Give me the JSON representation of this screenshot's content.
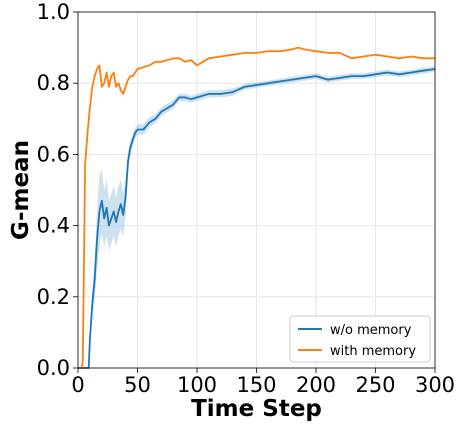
{
  "chart_data": {
    "type": "line",
    "xlabel": "Time Step",
    "ylabel": "G-mean",
    "xlim": [
      0,
      300
    ],
    "ylim": [
      0.0,
      1.0
    ],
    "xticks": [
      0,
      50,
      100,
      150,
      200,
      250,
      300
    ],
    "yticks": [
      "0.0",
      "0.2",
      "0.4",
      "0.6",
      "0.8",
      "1.0"
    ],
    "grid": true,
    "legend": {
      "placement": "bottom-right"
    },
    "series": [
      {
        "name": "w/o memory",
        "color": "#1f77b4",
        "band_color": "#a6c8e4",
        "x": [
          0,
          5,
          9,
          10,
          12,
          14,
          16,
          18,
          20,
          22,
          24,
          26,
          28,
          30,
          32,
          34,
          36,
          38,
          40,
          42,
          44,
          46,
          48,
          50,
          55,
          60,
          65,
          70,
          75,
          80,
          85,
          90,
          95,
          100,
          110,
          120,
          130,
          140,
          150,
          160,
          170,
          180,
          190,
          200,
          210,
          220,
          230,
          240,
          250,
          260,
          270,
          280,
          290,
          300
        ],
        "values": [
          0.0,
          0.0,
          0.0,
          0.08,
          0.18,
          0.25,
          0.36,
          0.44,
          0.47,
          0.42,
          0.45,
          0.4,
          0.42,
          0.44,
          0.41,
          0.44,
          0.46,
          0.43,
          0.48,
          0.58,
          0.62,
          0.64,
          0.66,
          0.67,
          0.67,
          0.69,
          0.7,
          0.72,
          0.73,
          0.74,
          0.76,
          0.76,
          0.755,
          0.76,
          0.77,
          0.77,
          0.775,
          0.79,
          0.795,
          0.8,
          0.805,
          0.81,
          0.815,
          0.82,
          0.81,
          0.815,
          0.82,
          0.82,
          0.825,
          0.83,
          0.825,
          0.83,
          0.835,
          0.84
        ],
        "band": [
          0,
          0,
          0,
          0.02,
          0.04,
          0.06,
          0.08,
          0.1,
          0.09,
          0.08,
          0.08,
          0.07,
          0.07,
          0.07,
          0.07,
          0.07,
          0.07,
          0.06,
          0.05,
          0.03,
          0.02,
          0.02,
          0.015,
          0.015,
          0.015,
          0.015,
          0.012,
          0.012,
          0.012,
          0.012,
          0.01,
          0.01,
          0.01,
          0.01,
          0.01,
          0.01,
          0.01,
          0.008,
          0.008,
          0.008,
          0.008,
          0.008,
          0.008,
          0.008,
          0.008,
          0.008,
          0.008,
          0.008,
          0.008,
          0.008,
          0.008,
          0.008,
          0.008,
          0.008
        ]
      },
      {
        "name": "with memory",
        "color": "#ff7f0e",
        "x": [
          0,
          3,
          4,
          6,
          8,
          10,
          12,
          14,
          16,
          18,
          20,
          22,
          24,
          26,
          28,
          30,
          32,
          34,
          36,
          38,
          40,
          42,
          44,
          46,
          48,
          50,
          55,
          60,
          65,
          70,
          75,
          80,
          85,
          90,
          95,
          100,
          105,
          110,
          120,
          130,
          140,
          150,
          160,
          170,
          180,
          185,
          190,
          200,
          210,
          220,
          230,
          240,
          250,
          260,
          270,
          280,
          290,
          300
        ],
        "values": [
          0.0,
          0.0,
          0.02,
          0.57,
          0.66,
          0.73,
          0.79,
          0.82,
          0.84,
          0.85,
          0.79,
          0.8,
          0.83,
          0.79,
          0.82,
          0.83,
          0.79,
          0.8,
          0.78,
          0.77,
          0.79,
          0.81,
          0.82,
          0.82,
          0.83,
          0.84,
          0.845,
          0.85,
          0.86,
          0.86,
          0.865,
          0.87,
          0.87,
          0.86,
          0.865,
          0.85,
          0.86,
          0.87,
          0.875,
          0.88,
          0.885,
          0.885,
          0.89,
          0.89,
          0.895,
          0.9,
          0.895,
          0.89,
          0.885,
          0.885,
          0.87,
          0.875,
          0.88,
          0.875,
          0.87,
          0.875,
          0.87,
          0.87
        ]
      }
    ]
  }
}
